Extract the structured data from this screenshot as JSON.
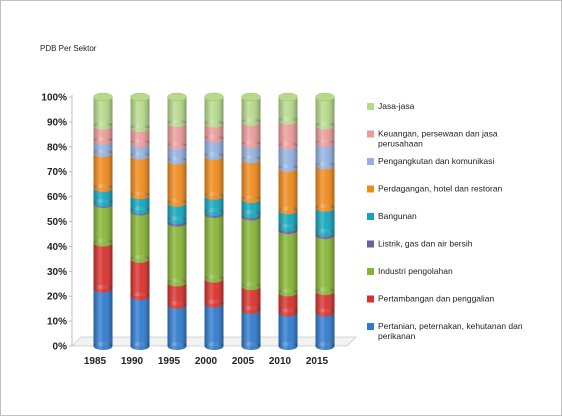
{
  "chart_data": {
    "type": "bar",
    "stacked": true,
    "percent": true,
    "title": "PDB Per Sektor",
    "xlabel": "",
    "ylabel": "",
    "ylim": [
      0,
      100
    ],
    "y_ticks": [
      "0%",
      "10%",
      "20%",
      "30%",
      "40%",
      "50%",
      "60%",
      "70%",
      "80%",
      "90%",
      "100%"
    ],
    "grid": false,
    "legend_position": "right",
    "categories": [
      "1985",
      "1990",
      "1995",
      "2000",
      "2005",
      "2010",
      "2015"
    ],
    "series": [
      {
        "name": "Pertanian, peternakan, kehutanan dan perikanan",
        "color": "#2e7bcf",
        "values": [
          23,
          20,
          16.5,
          17,
          14.5,
          13.5,
          13.5
        ]
      },
      {
        "name": "Pertambangan dan penggalian",
        "color": "#d9302c",
        "values": [
          18.5,
          15,
          9,
          10,
          9.5,
          8,
          8.5
        ]
      },
      {
        "name": "Industri pengolahan",
        "color": "#86b535",
        "values": [
          15.5,
          19,
          24,
          26,
          28,
          25,
          22.5
        ]
      },
      {
        "name": "Listrik, gas dan air bersih",
        "color": "#6e5e9e",
        "values": [
          0.5,
          0.5,
          1,
          0.8,
          1,
          1,
          1
        ]
      },
      {
        "name": "Bangunan",
        "color": "#12a6bd",
        "values": [
          6,
          6,
          7,
          6.5,
          6,
          7,
          10
        ]
      },
      {
        "name": "Perdagangan, hotel dan restoran",
        "color": "#f08a1a",
        "values": [
          14,
          16,
          17,
          16,
          16,
          17,
          17
        ]
      },
      {
        "name": "Pengangkutan dan komunikasi",
        "color": "#93b1e0",
        "values": [
          5,
          5,
          6,
          7,
          6,
          9,
          9
        ]
      },
      {
        "name": "Keuangan, persewaan dan jasa perusahaan",
        "color": "#ec9a9a",
        "values": [
          6,
          6,
          9,
          6,
          9,
          10,
          7
        ]
      },
      {
        "name": "Jasa-jasa",
        "color": "#b6d98a",
        "values": [
          11.5,
          12.5,
          10.5,
          10.7,
          10,
          9.5,
          11.5
        ]
      }
    ]
  }
}
